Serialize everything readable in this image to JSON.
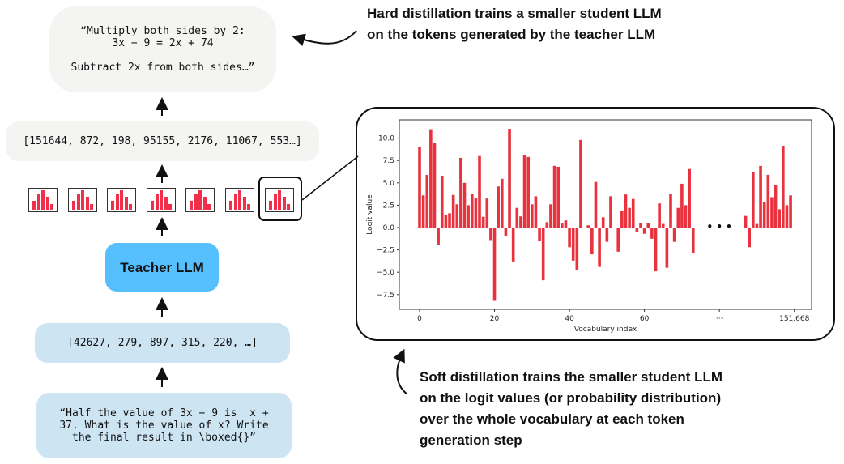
{
  "output_text": "“Multiply both sides by 2:\n3x − 9 = 2x + 74\n\nSubtract 2x from both sides…”",
  "output_tokens": "[151644, 872, 198, 95155, 2176, 11067, 553…]",
  "teacher_label": "Teacher LLM",
  "input_tokens": "[42627, 279, 897, 315, 220, …]",
  "prompt_text": "“Half the value of 3x − 9 is  x +\n37. What is the value of x? Write\nthe final result in \\boxed{}”",
  "hard_note": "Hard distillation trains a smaller student LLM\non the tokens generated by the teacher LLM",
  "soft_note": "Soft distillation trains the smaller student LLM\non the logit values (or probability distribution)\nover the whole vocabulary at each token\ngeneration step",
  "mini_histogram_count": 7,
  "colors": {
    "bar": "#e8333f",
    "mini_bar": "#f0304a",
    "teacher": "#56bffd",
    "token_box": "#cde4f3",
    "text_box": "#f4f4f2"
  },
  "chart_data": {
    "type": "bar",
    "xlabel": "Vocabulary index",
    "ylabel": "Logit value",
    "ylim": [
      -9.15,
      12.05
    ],
    "yticks": [
      -7.5,
      -5.0,
      -2.5,
      0.0,
      2.5,
      5.0,
      7.5,
      10.0
    ],
    "xtick_labels": [
      "0",
      "20",
      "40",
      "60",
      "···",
      "151,668"
    ],
    "gap_marker": "• • •",
    "head_values": [
      9.0,
      3.6,
      5.9,
      11.0,
      9.5,
      -1.9,
      5.8,
      1.4,
      1.6,
      3.65,
      2.6,
      7.8,
      5.0,
      2.5,
      3.8,
      3.3,
      8.0,
      1.2,
      3.25,
      -1.4,
      -8.2,
      4.6,
      5.45,
      -1.0,
      11.05,
      -3.8,
      2.2,
      1.25,
      8.1,
      7.9,
      2.6,
      3.5,
      -1.5,
      -5.9,
      0.6,
      2.6,
      6.9,
      6.8,
      0.45,
      0.8,
      -2.2,
      -3.7,
      -4.8,
      9.8,
      -0.05,
      0.25,
      -3.0,
      5.1,
      -4.4,
      1.15,
      -1.6,
      3.5,
      -0.05,
      -2.7,
      1.85,
      3.7,
      2.2,
      3.2,
      -0.5,
      0.5,
      -0.7,
      0.5,
      -1.25,
      -4.9,
      2.7,
      0.4,
      -4.5,
      3.8,
      -1.6,
      2.2,
      4.9,
      2.5,
      6.55,
      -2.9
    ],
    "tail_values": [
      1.3,
      -2.2,
      6.2,
      0.4,
      6.9,
      2.85,
      5.9,
      3.4,
      4.8,
      2.05,
      9.15,
      2.5,
      3.6
    ]
  }
}
